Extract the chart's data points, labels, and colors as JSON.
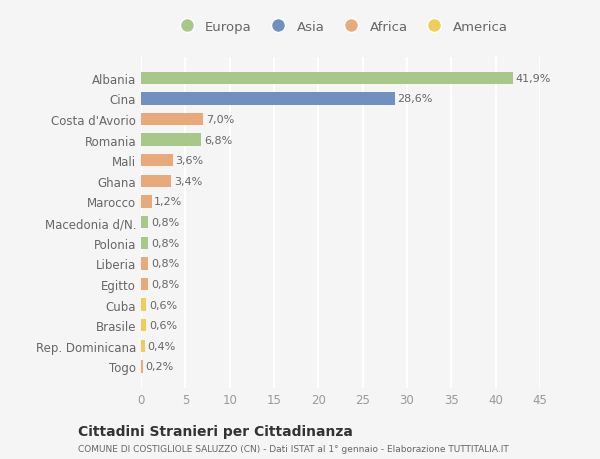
{
  "countries": [
    "Albania",
    "Cina",
    "Costa d'Avorio",
    "Romania",
    "Mali",
    "Ghana",
    "Marocco",
    "Macedonia d/N.",
    "Polonia",
    "Liberia",
    "Egitto",
    "Cuba",
    "Brasile",
    "Rep. Dominicana",
    "Togo"
  ],
  "values": [
    41.9,
    28.6,
    7.0,
    6.8,
    3.6,
    3.4,
    1.2,
    0.8,
    0.8,
    0.8,
    0.8,
    0.6,
    0.6,
    0.4,
    0.2
  ],
  "labels": [
    "41,9%",
    "28,6%",
    "7,0%",
    "6,8%",
    "3,6%",
    "3,4%",
    "1,2%",
    "0,8%",
    "0,8%",
    "0,8%",
    "0,8%",
    "0,6%",
    "0,6%",
    "0,4%",
    "0,2%"
  ],
  "continents": [
    "Europa",
    "Asia",
    "Africa",
    "Europa",
    "Africa",
    "Africa",
    "Africa",
    "Europa",
    "Europa",
    "Africa",
    "Africa",
    "America",
    "America",
    "America",
    "Africa"
  ],
  "colors": {
    "Europa": "#a8c88a",
    "Asia": "#7090bf",
    "Africa": "#e8aa7a",
    "America": "#f0cc5a"
  },
  "legend_order": [
    "Europa",
    "Asia",
    "Africa",
    "America"
  ],
  "bg_color": "#f5f5f5",
  "grid_color": "#ffffff",
  "xlim": [
    0,
    45
  ],
  "xticks": [
    0,
    5,
    10,
    15,
    20,
    25,
    30,
    35,
    40,
    45
  ],
  "title_main": "Cittadini Stranieri per Cittadinanza",
  "title_sub": "COMUNE DI COSTIGLIOLE SALUZZO (CN) - Dati ISTAT al 1° gennaio - Elaborazione TUTTITALIA.IT",
  "label_fontsize": 8,
  "bar_height": 0.6
}
